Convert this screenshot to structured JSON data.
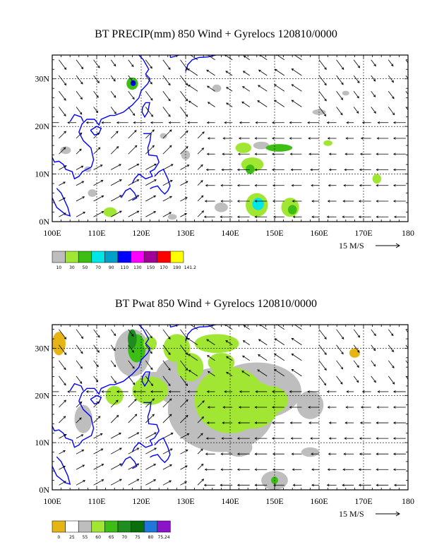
{
  "panels": [
    {
      "title": "BT PRECIP(mm) 850 Wind + Gyrelocs 120810/0000",
      "lat_labels": [
        "30N",
        "20N",
        "10N",
        "0N"
      ],
      "lon_labels": [
        "100E",
        "110E",
        "120E",
        "130E",
        "140E",
        "150E",
        "160E",
        "170E",
        "180"
      ],
      "scale_label": "15 M/S",
      "legend": {
        "colors": [
          "#bebebe",
          "#a0e632",
          "#3cbe14",
          "#00e6e6",
          "#00a0c8",
          "#0000ff",
          "#ff00ff",
          "#a00096",
          "#ff0000",
          "#ffff00"
        ],
        "labels": [
          "10",
          "30",
          "50",
          "70",
          "90",
          "110",
          "130",
          "150",
          "170",
          "190",
          "141.2"
        ]
      }
    },
    {
      "title": "BT Pwat 850 Wind + Gyrelocs 120810/0000",
      "lat_labels": [
        "30N",
        "20N",
        "10N",
        "0N"
      ],
      "lon_labels": [
        "100E",
        "110E",
        "120E",
        "130E",
        "140E",
        "150E",
        "160E",
        "170E",
        "180"
      ],
      "scale_label": "15 M/S",
      "legend": {
        "colors": [
          "#e6b414",
          "#ffffff",
          "#bebebe",
          "#a0e632",
          "#3cbe14",
          "#1e8c1e",
          "#0a6e0a",
          "#1e78dc",
          "#8c14c8"
        ],
        "labels": [
          "0",
          "25",
          "55",
          "60",
          "65",
          "70",
          "75",
          "80",
          "75.24"
        ]
      }
    }
  ]
}
